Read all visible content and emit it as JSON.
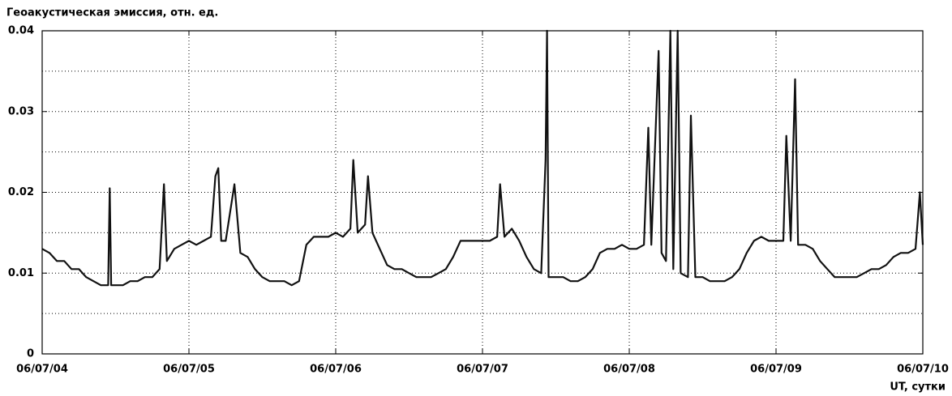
{
  "chart_data": {
    "type": "line",
    "ylabel": "Геоакустическая эмиссия, отн. ед.",
    "xlabel": "UT, сутки",
    "color": "#111111",
    "xlim": [
      0,
      6
    ],
    "xticks": [
      {
        "value": 0,
        "label": "06/07/04"
      },
      {
        "value": 1,
        "label": "06/07/05"
      },
      {
        "value": 2,
        "label": "06/07/06"
      },
      {
        "value": 3,
        "label": "06/07/07"
      },
      {
        "value": 4,
        "label": "06/07/08"
      },
      {
        "value": 5,
        "label": "06/07/09"
      },
      {
        "value": 6,
        "label": "06/07/10"
      }
    ],
    "ylim": [
      0,
      0.04
    ],
    "yticks": [
      0,
      0.01,
      0.02,
      0.03,
      0.04
    ],
    "minor_yticks": [
      0.005,
      0.015,
      0.025,
      0.035
    ],
    "grid": true,
    "x": [
      0.0,
      0.05,
      0.1,
      0.15,
      0.2,
      0.25,
      0.3,
      0.35,
      0.4,
      0.45,
      0.46,
      0.47,
      0.5,
      0.55,
      0.6,
      0.65,
      0.7,
      0.75,
      0.8,
      0.83,
      0.85,
      0.9,
      0.95,
      1.0,
      1.05,
      1.1,
      1.15,
      1.18,
      1.2,
      1.22,
      1.25,
      1.31,
      1.35,
      1.4,
      1.45,
      1.5,
      1.55,
      1.6,
      1.65,
      1.7,
      1.75,
      1.8,
      1.85,
      1.9,
      1.95,
      2.0,
      2.05,
      2.1,
      2.12,
      2.15,
      2.2,
      2.22,
      2.25,
      2.3,
      2.35,
      2.4,
      2.45,
      2.5,
      2.55,
      2.6,
      2.65,
      2.7,
      2.75,
      2.8,
      2.85,
      2.9,
      2.95,
      3.0,
      3.05,
      3.1,
      3.12,
      3.15,
      3.2,
      3.25,
      3.3,
      3.35,
      3.4,
      3.43,
      3.44,
      3.45,
      3.5,
      3.55,
      3.6,
      3.65,
      3.7,
      3.75,
      3.8,
      3.85,
      3.9,
      3.95,
      4.0,
      4.05,
      4.1,
      4.13,
      4.15,
      4.2,
      4.22,
      4.25,
      4.28,
      4.3,
      4.33,
      4.35,
      4.4,
      4.42,
      4.45,
      4.5,
      4.55,
      4.6,
      4.65,
      4.7,
      4.75,
      4.8,
      4.85,
      4.9,
      4.95,
      5.0,
      5.05,
      5.07,
      5.1,
      5.13,
      5.15,
      5.2,
      5.25,
      5.3,
      5.35,
      5.4,
      5.45,
      5.5,
      5.55,
      5.6,
      5.65,
      5.7,
      5.75,
      5.8,
      5.85,
      5.9,
      5.95,
      5.98,
      6.0
    ],
    "values": [
      0.013,
      0.0125,
      0.0115,
      0.0115,
      0.0105,
      0.0105,
      0.0095,
      0.009,
      0.0085,
      0.0085,
      0.0205,
      0.0085,
      0.0085,
      0.0085,
      0.009,
      0.009,
      0.0095,
      0.0095,
      0.0105,
      0.021,
      0.0115,
      0.013,
      0.0135,
      0.014,
      0.0135,
      0.014,
      0.0145,
      0.022,
      0.023,
      0.014,
      0.014,
      0.021,
      0.0125,
      0.012,
      0.0105,
      0.0095,
      0.009,
      0.009,
      0.009,
      0.0085,
      0.009,
      0.0135,
      0.0145,
      0.0145,
      0.0145,
      0.015,
      0.0145,
      0.0155,
      0.024,
      0.015,
      0.016,
      0.022,
      0.015,
      0.013,
      0.011,
      0.0105,
      0.0105,
      0.01,
      0.0095,
      0.0095,
      0.0095,
      0.01,
      0.0105,
      0.012,
      0.014,
      0.014,
      0.014,
      0.014,
      0.014,
      0.0145,
      0.021,
      0.0145,
      0.0155,
      0.014,
      0.012,
      0.0105,
      0.01,
      0.024,
      0.04,
      0.0095,
      0.0095,
      0.0095,
      0.009,
      0.009,
      0.0095,
      0.0105,
      0.0125,
      0.013,
      0.013,
      0.0135,
      0.013,
      0.013,
      0.0135,
      0.028,
      0.0135,
      0.0375,
      0.0125,
      0.0115,
      0.04,
      0.0105,
      0.04,
      0.01,
      0.0095,
      0.0295,
      0.0095,
      0.0095,
      0.009,
      0.009,
      0.009,
      0.0095,
      0.0105,
      0.0125,
      0.014,
      0.0145,
      0.014,
      0.014,
      0.014,
      0.027,
      0.014,
      0.034,
      0.0135,
      0.0135,
      0.013,
      0.0115,
      0.0105,
      0.0095,
      0.0095,
      0.0095,
      0.0095,
      0.01,
      0.0105,
      0.0105,
      0.011,
      0.012,
      0.0125,
      0.0125,
      0.013,
      0.02,
      0.0135
    ]
  }
}
